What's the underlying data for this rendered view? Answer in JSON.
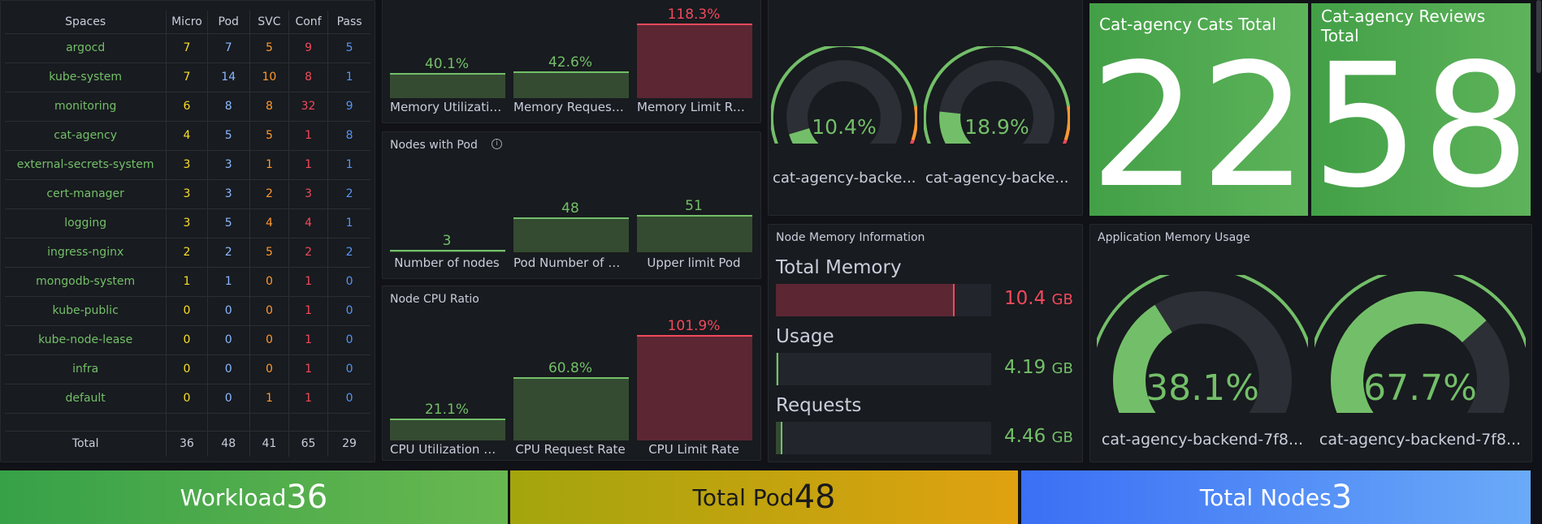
{
  "namespaces_table": {
    "headers": [
      "Spaces",
      "Micro",
      "Pod",
      "SVC",
      "Conf",
      "Pass"
    ],
    "rows": [
      {
        "name": "argocd",
        "vals": [
          "7",
          "7",
          "5",
          "9",
          "5"
        ]
      },
      {
        "name": "kube-system",
        "vals": [
          "7",
          "14",
          "10",
          "8",
          "1"
        ]
      },
      {
        "name": "monitoring",
        "vals": [
          "6",
          "8",
          "8",
          "32",
          "9"
        ]
      },
      {
        "name": "cat-agency",
        "vals": [
          "4",
          "5",
          "5",
          "1",
          "8"
        ]
      },
      {
        "name": "external-secrets-system",
        "vals": [
          "3",
          "3",
          "1",
          "1",
          "1"
        ]
      },
      {
        "name": "cert-manager",
        "vals": [
          "3",
          "3",
          "2",
          "3",
          "2"
        ]
      },
      {
        "name": "logging",
        "vals": [
          "3",
          "5",
          "4",
          "4",
          "1"
        ]
      },
      {
        "name": "ingress-nginx",
        "vals": [
          "2",
          "2",
          "5",
          "2",
          "2"
        ]
      },
      {
        "name": "mongodb-system",
        "vals": [
          "1",
          "1",
          "0",
          "1",
          "0"
        ]
      },
      {
        "name": "kube-public",
        "vals": [
          "0",
          "0",
          "0",
          "1",
          "0"
        ]
      },
      {
        "name": "kube-node-lease",
        "vals": [
          "0",
          "0",
          "0",
          "1",
          "0"
        ]
      },
      {
        "name": "infra",
        "vals": [
          "0",
          "0",
          "0",
          "1",
          "0"
        ]
      },
      {
        "name": "default",
        "vals": [
          "0",
          "0",
          "1",
          "1",
          "0"
        ]
      }
    ],
    "total": {
      "label": "Total",
      "vals": [
        "36",
        "48",
        "41",
        "65",
        "29"
      ]
    },
    "col_colors": [
      "#fade2a",
      "#8ab8ff",
      "#ff9830",
      "#f2495c",
      "#5794f2"
    ],
    "name_color": "#73bf69"
  },
  "memory_panel": {
    "items": [
      {
        "label": "Memory Utilization",
        "value": "40.1%",
        "color": "#73bf69"
      },
      {
        "label": "Memory Request R...",
        "value": "42.6%",
        "color": "#73bf69"
      },
      {
        "label": "Memory Limit Rate",
        "value": "118.3%",
        "color": "#f2495c"
      }
    ]
  },
  "nodes_with_pod": {
    "title": "Nodes with Pod",
    "items": [
      {
        "label": "Number of nodes",
        "value": "3",
        "color": "#73bf69"
      },
      {
        "label": "Pod Number of no...",
        "value": "48",
        "color": "#73bf69"
      },
      {
        "label": "Upper limit Pod",
        "value": "51",
        "color": "#73bf69"
      }
    ]
  },
  "node_cpu": {
    "title": "Node CPU Ratio",
    "items": [
      {
        "label": "CPU Utilization Rate",
        "value": "21.1%",
        "color": "#73bf69"
      },
      {
        "label": "CPU Request Rate",
        "value": "60.8%",
        "color": "#73bf69"
      },
      {
        "label": "CPU Limit Rate",
        "value": "101.9%",
        "color": "#f2495c"
      }
    ]
  },
  "small_gauges": {
    "items": [
      {
        "label": "cat-agency-backe...",
        "value": "10.4%",
        "fraction": 0.104
      },
      {
        "label": "cat-agency-backe...",
        "value": "18.9%",
        "fraction": 0.189
      }
    ]
  },
  "cats_total": {
    "title": "Cat-agency Cats Total",
    "value": "22"
  },
  "reviews_total": {
    "title": "Cat-agency Reviews Total",
    "value": "58"
  },
  "node_memory": {
    "title": "Node Memory Information",
    "items": [
      {
        "label": "Total Memory",
        "value": "10.4",
        "unit": "GB",
        "color": "#f2495c",
        "fraction": 0.83
      },
      {
        "label": "Usage",
        "value": "4.19",
        "unit": "GB",
        "color": "#73bf69",
        "fraction": 0.01
      },
      {
        "label": "Requests",
        "value": "4.46",
        "unit": "GB",
        "color": "#73bf69",
        "fraction": 0.03
      }
    ]
  },
  "app_memory": {
    "title": "Application Memory Usage",
    "items": [
      {
        "label": "cat-agency-backend-7f8...",
        "value": "38.1%",
        "fraction": 0.381
      },
      {
        "label": "cat-agency-backend-7f8...",
        "value": "67.7%",
        "fraction": 0.677
      }
    ]
  },
  "banners": {
    "workload": {
      "label": "Workload",
      "value": "36"
    },
    "total_pod": {
      "label": "Total Pod",
      "value": "48"
    },
    "total_nodes": {
      "label": "Total Nodes",
      "value": "3"
    }
  }
}
